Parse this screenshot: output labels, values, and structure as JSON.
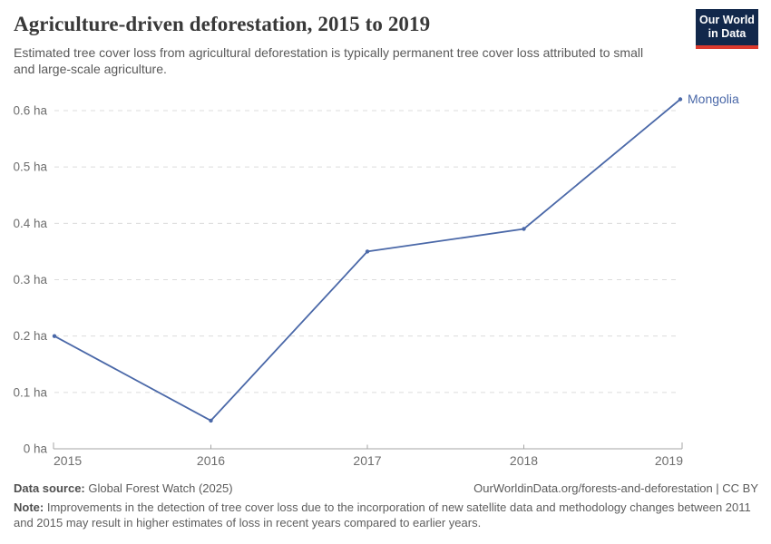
{
  "header": {
    "title": "Agriculture-driven deforestation, 2015 to 2019",
    "subtitle": "Estimated tree cover loss from agricultural deforestation is typically permanent tree cover loss attributed to small and large-scale agriculture.",
    "logo": {
      "line1": "Our World",
      "line2": "in Data"
    }
  },
  "chart_data": {
    "type": "line",
    "title": "Agriculture-driven deforestation, 2015 to 2019",
    "x": [
      2015,
      2016,
      2017,
      2018,
      2019
    ],
    "x_tick_labels": [
      "2015",
      "2016",
      "2017",
      "2018",
      "2019"
    ],
    "series": [
      {
        "name": "Mongolia",
        "values": [
          0.2,
          0.05,
          0.35,
          0.39,
          0.62
        ]
      }
    ],
    "unit": "ha",
    "y_ticks": [
      {
        "value": 0,
        "label": "0 ha"
      },
      {
        "value": 0.1,
        "label": "0.1 ha"
      },
      {
        "value": 0.2,
        "label": "0.2 ha"
      },
      {
        "value": 0.3,
        "label": "0.3 ha"
      },
      {
        "value": 0.4,
        "label": "0.4 ha"
      },
      {
        "value": 0.5,
        "label": "0.5 ha"
      },
      {
        "value": 0.6,
        "label": "0.6 ha"
      }
    ],
    "ylim": [
      0,
      0.62
    ],
    "xlim": [
      2015,
      2019
    ],
    "grid": "horizontal-dashed",
    "legend_position": "end-of-line-label",
    "colors": {
      "line": "#4a68a8",
      "series_label": "#4a68a8",
      "gridline": "#dcdcdc",
      "axis": "#a5a5a5",
      "tick_label": "#6e6e6e"
    }
  },
  "footer": {
    "datasource_label": "Data source:",
    "datasource_value": " Global Forest Watch (2025)",
    "link": "OurWorldinData.org/forests-and-deforestation | CC BY",
    "note_label": "Note:",
    "note_text": " Improvements in the detection of tree cover loss due to the incorporation of new satellite data and methodology changes between 2011 and 2015 may result in higher estimates of loss in recent years compared to earlier years."
  }
}
